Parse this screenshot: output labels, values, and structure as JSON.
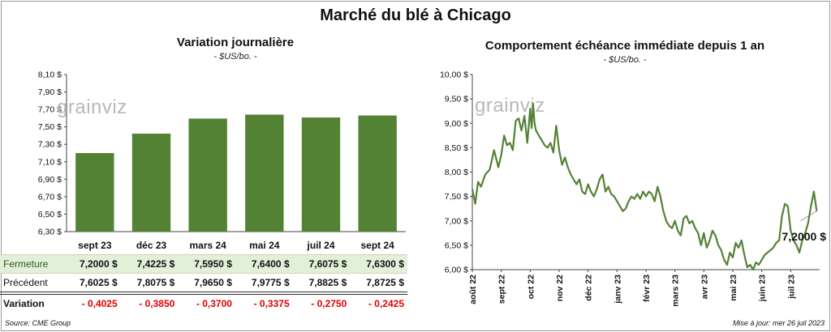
{
  "title": "Marché du blé à Chicago",
  "source": "Source: CME Group",
  "updated": "Mise à jour: mer 26 juil 2023",
  "watermark": "grainviz",
  "chart_data": [
    {
      "type": "bar",
      "title": "Variation journalière",
      "subtitle": "- $US/bo. -",
      "categories": [
        "sept 23",
        "déc 23",
        "mars 24",
        "mai 24",
        "juil 24",
        "sept 24"
      ],
      "values": [
        7.2,
        7.4225,
        7.595,
        7.64,
        7.6075,
        7.63
      ],
      "ylim": [
        6.3,
        8.1
      ],
      "yticks": [
        "8,10 $",
        "7,90 $",
        "7,70 $",
        "7,50 $",
        "7,30 $",
        "7,10 $",
        "6,90 $",
        "6,70 $",
        "6,50 $",
        "6,30 $"
      ],
      "bar_color": "#548235"
    },
    {
      "type": "line",
      "title": "Comportement  échéance immédiate depuis 1 an",
      "subtitle": "- $US/bo. -",
      "ylim": [
        6.0,
        10.0
      ],
      "yticks": [
        "10,00 $",
        "9,50 $",
        "9,00 $",
        "8,50 $",
        "8,00 $",
        "7,50 $",
        "7,00 $",
        "6,50 $",
        "6,00 $"
      ],
      "xticks": [
        "août 22",
        "sept 22",
        "oct 22",
        "nov 22",
        "déc 22",
        "janv 23",
        "févr 23",
        "mars 23",
        "avr 23",
        "mai 23",
        "juin 23",
        "juil 23"
      ],
      "line_color": "#548235",
      "last_value_label": "7,2000 $",
      "series": [
        {
          "x": [
            0,
            0.1,
            0.2,
            0.3,
            0.45,
            0.6,
            0.75,
            0.9,
            1.0,
            1.1,
            1.2,
            1.3,
            1.4,
            1.5,
            1.6,
            1.7,
            1.8,
            1.9,
            2.0,
            2.05,
            2.1,
            2.15,
            2.2,
            2.3,
            2.4,
            2.5,
            2.6,
            2.7,
            2.8,
            2.9,
            3.0,
            3.1,
            3.2,
            3.3,
            3.4,
            3.5,
            3.6,
            3.7,
            3.8,
            3.9,
            4.0,
            4.1,
            4.2,
            4.3,
            4.4,
            4.5,
            4.6,
            4.7,
            4.8,
            4.9,
            5.0,
            5.1,
            5.2,
            5.3,
            5.4,
            5.5,
            5.6,
            5.7,
            5.8,
            5.9,
            6.0,
            6.1,
            6.2,
            6.3,
            6.4,
            6.5,
            6.6,
            6.7,
            6.8,
            6.9,
            7.0,
            7.1,
            7.2,
            7.3,
            7.4,
            7.5,
            7.6,
            7.7,
            7.8,
            7.9,
            8.0,
            8.1,
            8.2,
            8.3,
            8.4,
            8.5,
            8.6,
            8.7,
            8.8,
            8.9,
            9.0,
            9.1,
            9.2,
            9.3,
            9.4,
            9.5,
            9.6,
            9.7,
            9.8,
            9.9,
            10.0,
            10.1,
            10.2,
            10.3,
            10.4,
            10.5,
            10.6,
            10.7,
            10.8,
            10.9,
            11.0,
            11.1,
            11.2,
            11.3,
            11.4,
            11.5,
            11.6,
            11.7,
            11.8,
            11.9
          ],
          "y": [
            7.65,
            7.35,
            7.8,
            7.7,
            7.95,
            8.05,
            8.45,
            8.1,
            8.35,
            8.75,
            8.55,
            8.6,
            8.45,
            9.05,
            9.1,
            8.85,
            9.15,
            8.6,
            9.3,
            8.9,
            9.4,
            9.0,
            8.85,
            8.75,
            8.65,
            8.55,
            8.5,
            8.6,
            8.4,
            8.95,
            8.45,
            8.15,
            8.3,
            8.1,
            7.95,
            7.85,
            7.75,
            7.85,
            7.6,
            7.55,
            7.75,
            7.6,
            7.5,
            7.65,
            7.85,
            7.95,
            7.6,
            7.7,
            7.55,
            7.5,
            7.4,
            7.3,
            7.2,
            7.25,
            7.4,
            7.5,
            7.45,
            7.55,
            7.45,
            7.6,
            7.5,
            7.6,
            7.55,
            7.4,
            7.7,
            7.5,
            7.2,
            7.0,
            6.9,
            6.85,
            7.0,
            6.8,
            6.7,
            7.05,
            7.1,
            6.95,
            7.0,
            6.85,
            6.75,
            6.5,
            6.75,
            6.45,
            6.6,
            6.8,
            6.7,
            6.5,
            6.4,
            6.2,
            6.1,
            6.35,
            6.25,
            6.55,
            6.45,
            6.6,
            6.3,
            6.05,
            6.1,
            6.0,
            6.15,
            6.1,
            6.2,
            6.3,
            6.35,
            6.4,
            6.45,
            6.55,
            6.6,
            7.1,
            7.35,
            7.3,
            6.8,
            6.6,
            6.5,
            6.35,
            6.6,
            6.75,
            6.95,
            7.3,
            7.6,
            7.2
          ]
        }
      ]
    }
  ],
  "table": {
    "rows": [
      {
        "label": "Fermeture",
        "cells": [
          "7,2000  $",
          "7,4225  $",
          "7,5950  $",
          "7,6400  $",
          "7,6075  $",
          "7,6300  $"
        ]
      },
      {
        "label": "Précédent",
        "cells": [
          "7,6025  $",
          "7,8075  $",
          "7,9650  $",
          "7,9775  $",
          "7,8825  $",
          "7,8725  $"
        ]
      },
      {
        "label": "Variation",
        "cells": [
          "- 0,4025",
          "- 0,3850",
          "- 0,3700",
          "- 0,3375",
          "- 0,2750",
          "- 0,2425"
        ]
      }
    ]
  }
}
